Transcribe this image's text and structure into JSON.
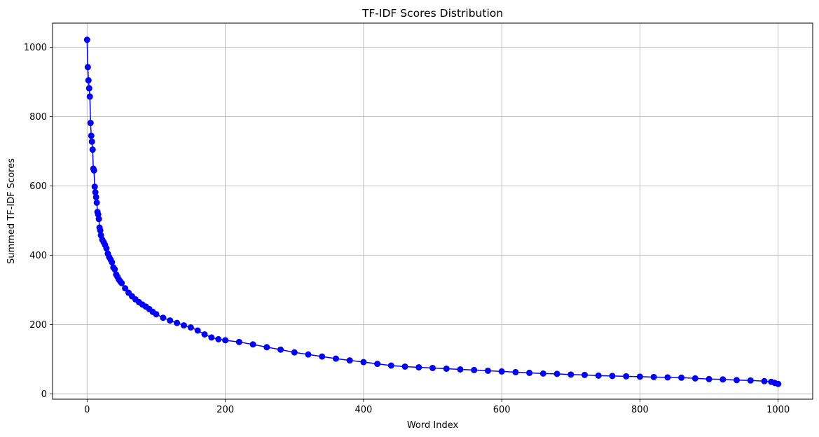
{
  "chart_data": {
    "type": "line",
    "title": "TF-IDF Scores Distribution",
    "xlabel": "Word Index",
    "ylabel": "Summed TF-IDF Scores",
    "xlim": [
      -50,
      1050
    ],
    "ylim": [
      -15,
      1070
    ],
    "xticks": [
      0,
      200,
      400,
      600,
      800,
      1000
    ],
    "yticks": [
      0,
      200,
      400,
      600,
      800,
      1000
    ],
    "grid": true,
    "marker": "circle",
    "color": "#0000ff",
    "series": [
      {
        "x": [
          0,
          1,
          2,
          3,
          4,
          5,
          6,
          7,
          8,
          9,
          10,
          11,
          12,
          13,
          14,
          15,
          16,
          17,
          18,
          19,
          20,
          22,
          24,
          26,
          28,
          30,
          32,
          34,
          36,
          38,
          40,
          42,
          44,
          46,
          48,
          50,
          55,
          60,
          65,
          70,
          75,
          80,
          85,
          90,
          95,
          100,
          110,
          120,
          130,
          140,
          150,
          160,
          170,
          180,
          190,
          200,
          220,
          240,
          260,
          280,
          300,
          320,
          340,
          360,
          380,
          400,
          420,
          440,
          460,
          480,
          500,
          520,
          540,
          560,
          580,
          600,
          620,
          640,
          660,
          680,
          700,
          720,
          740,
          760,
          780,
          800,
          820,
          840,
          860,
          880,
          900,
          920,
          940,
          960,
          980,
          990,
          995,
          1000
        ],
        "y": [
          1022,
          943,
          905,
          882,
          858,
          782,
          745,
          728,
          705,
          650,
          645,
          598,
          582,
          568,
          552,
          525,
          518,
          505,
          480,
          472,
          458,
          445,
          438,
          430,
          420,
          405,
          395,
          388,
          380,
          365,
          360,
          345,
          338,
          330,
          325,
          320,
          305,
          292,
          282,
          273,
          265,
          258,
          252,
          245,
          237,
          230,
          220,
          212,
          205,
          198,
          192,
          183,
          172,
          163,
          158,
          155,
          150,
          143,
          135,
          128,
          120,
          114,
          108,
          102,
          97,
          92,
          87,
          82,
          79,
          77,
          75,
          73,
          71,
          69,
          67,
          65,
          63,
          61,
          59,
          58,
          56,
          55,
          53,
          52,
          51,
          50,
          49,
          48,
          47,
          45,
          43,
          42,
          40,
          39,
          37,
          35,
          32,
          29
        ]
      }
    ]
  }
}
